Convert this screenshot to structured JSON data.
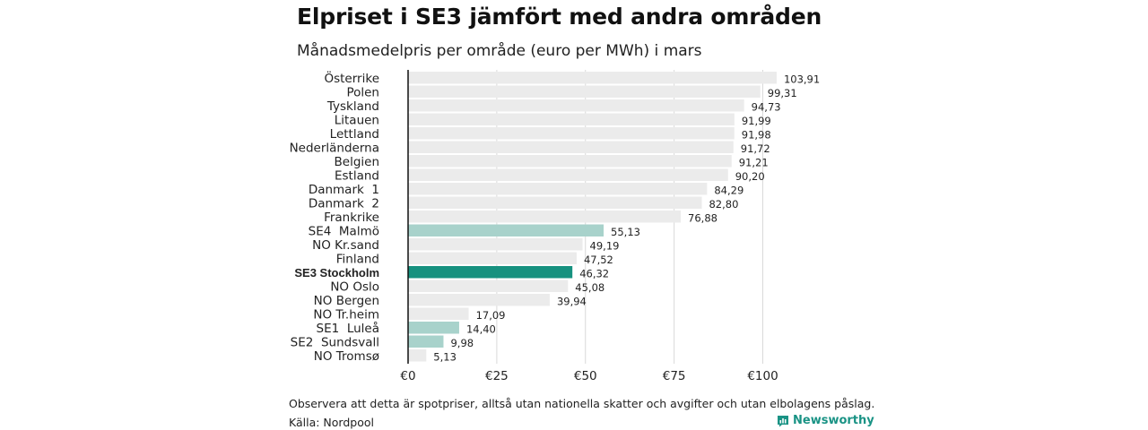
{
  "title": "Elpriset i SE3 jämfört med andra områden",
  "subtitle": "Månadsmedelpris per område (euro per MWh) i mars",
  "footnote": "Observera att detta är spotpriser, alltså utan nationella skatter och avgifter och utan elbolagens påslag.",
  "source": "Källa: Nordpool",
  "brand": {
    "name": "Newsworthy",
    "icon": "newsworthy-logo-icon"
  },
  "colors": {
    "default": "#ebebeb",
    "se_other": "#a8d2cb",
    "se3": "#16917f",
    "grid": "#d9d9d9",
    "axis": "#111111"
  },
  "chart_data": {
    "type": "bar",
    "orientation": "horizontal",
    "unit": "euro per MWh",
    "xlim": [
      0,
      105
    ],
    "xticks": [
      0,
      25,
      50,
      75,
      100
    ],
    "xtick_labels": [
      "€0",
      "€25",
      "€50",
      "€75",
      "€100"
    ],
    "grid": true,
    "categories": [
      "Österrike",
      "Polen",
      "Tyskland",
      "Litauen",
      "Lettland",
      "Nederländerna",
      "Belgien",
      "Estland",
      "Danmark  1",
      "Danmark  2",
      "Frankrike",
      "SE4  Malmö",
      "NO Kr.sand",
      "Finland",
      "SE3 Stockholm",
      "NO Oslo",
      "NO Bergen",
      "NO Tr.heim",
      "SE1  Luleå",
      "SE2  Sundsvall",
      "NO Tromsø"
    ],
    "values": [
      103.91,
      99.31,
      94.73,
      91.99,
      91.98,
      91.72,
      91.21,
      90.2,
      84.29,
      82.8,
      76.88,
      55.13,
      49.19,
      47.52,
      46.32,
      45.08,
      39.94,
      17.09,
      14.4,
      9.98,
      5.13
    ],
    "value_labels": [
      "103,91",
      "99,31",
      "94,73",
      "91,99",
      "91,98",
      "91,72",
      "91,21",
      "90,20",
      "84,29",
      "82,80",
      "76,88",
      "55,13",
      "49,19",
      "47,52",
      "46,32",
      "45,08",
      "39,94",
      "17,09",
      "14,40",
      "9,98",
      "5,13"
    ],
    "highlight": [
      "default",
      "default",
      "default",
      "default",
      "default",
      "default",
      "default",
      "default",
      "default",
      "default",
      "default",
      "se_other",
      "default",
      "default",
      "se3",
      "default",
      "default",
      "default",
      "se_other",
      "se_other",
      "default"
    ],
    "bold_label": "SE3 Stockholm"
  }
}
